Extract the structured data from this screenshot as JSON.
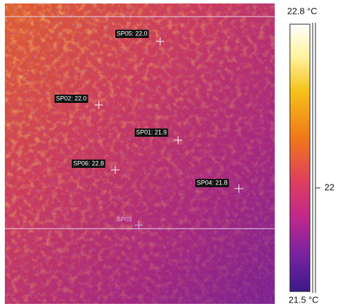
{
  "thermal_image": {
    "spots": [
      {
        "label": "SP05: 22.0"
      },
      {
        "label": "SP02: 22.0"
      },
      {
        "label": "SP01: 21.9"
      },
      {
        "label": "SP06: 22.8"
      },
      {
        "label": "SP04: 21.8"
      },
      {
        "label": "SP03"
      }
    ]
  },
  "scale": {
    "max_label": "22.8 °C",
    "min_label": "21.5 °C",
    "mid_label": "22"
  }
}
